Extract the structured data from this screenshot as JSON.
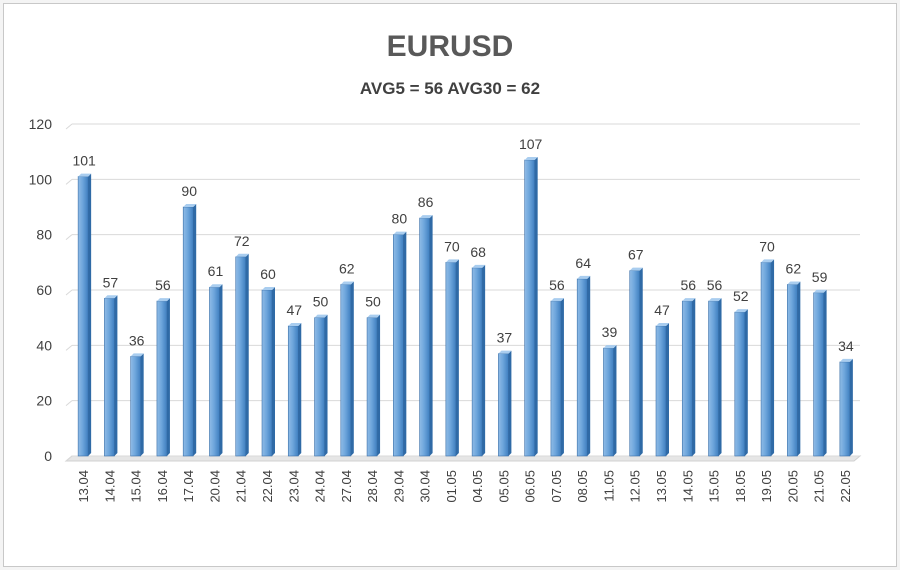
{
  "chart_data": {
    "type": "bar",
    "title": "EURUSD",
    "subtitle": "AVG5 = 56 AVG30 = 62",
    "xlabel": "",
    "ylabel": "",
    "ylim": [
      0,
      120
    ],
    "yticks": [
      0,
      20,
      40,
      60,
      80,
      100,
      120
    ],
    "grid": true,
    "legend": "none",
    "bar_color": "#5b9bd5",
    "categories": [
      "13.04",
      "14.04",
      "15.04",
      "16.04",
      "17.04",
      "20.04",
      "21.04",
      "22.04",
      "23.04",
      "24.04",
      "27.04",
      "28.04",
      "29.04",
      "30.04",
      "01.05",
      "04.05",
      "05.05",
      "06.05",
      "07.05",
      "08.05",
      "11.05",
      "12.05",
      "13.05",
      "14.05",
      "15.05",
      "18.05",
      "19.05",
      "20.05",
      "21.05",
      "22.05"
    ],
    "values": [
      101,
      57,
      36,
      56,
      90,
      61,
      72,
      60,
      47,
      50,
      62,
      50,
      80,
      86,
      70,
      68,
      37,
      107,
      56,
      64,
      39,
      67,
      47,
      56,
      56,
      52,
      70,
      62,
      59,
      34
    ]
  }
}
